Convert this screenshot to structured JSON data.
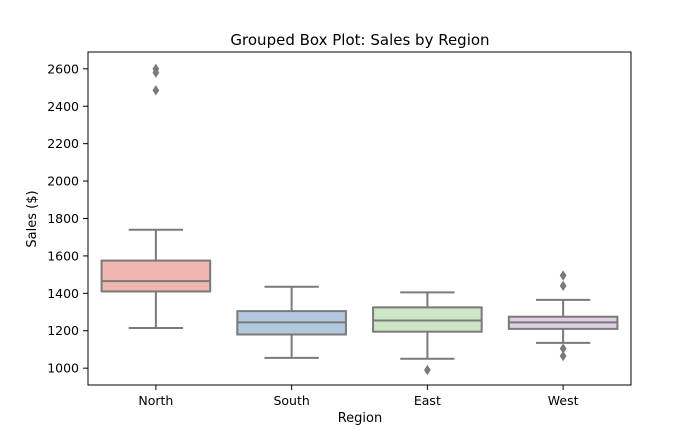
{
  "chart_data": {
    "type": "box",
    "title": "Grouped Box Plot: Sales by Region",
    "xlabel": "Region",
    "ylabel": "Sales ($)",
    "categories": [
      "North",
      "South",
      "East",
      "West"
    ],
    "ylim": [
      910,
      2690
    ],
    "yticks": [
      1000,
      1200,
      1400,
      1600,
      1800,
      2000,
      2200,
      2400,
      2600
    ],
    "ytick_labels": [
      "1000",
      "1200",
      "1400",
      "1600",
      "1800",
      "2000",
      "2200",
      "2400",
      "2600"
    ],
    "grid": false,
    "legend": "none",
    "boxes": [
      {
        "name": "North",
        "whisker_low": 1215,
        "q1": 1410,
        "median": 1465,
        "q3": 1575,
        "whisker_high": 1740,
        "outliers": [
          2600,
          2580,
          2485
        ],
        "color": "#f1b6b2"
      },
      {
        "name": "South",
        "whisker_low": 1055,
        "q1": 1180,
        "median": 1245,
        "q3": 1305,
        "whisker_high": 1435,
        "outliers": [],
        "color": "#b3c9df"
      },
      {
        "name": "East",
        "whisker_low": 1050,
        "q1": 1195,
        "median": 1255,
        "q3": 1325,
        "whisker_high": 1405,
        "outliers": [
          990
        ],
        "color": "#cde6c6"
      },
      {
        "name": "West",
        "whisker_low": 1135,
        "q1": 1210,
        "median": 1245,
        "q3": 1275,
        "whisker_high": 1365,
        "outliers": [
          1495,
          1440,
          1105,
          1065
        ],
        "color": "#dfcfe3"
      }
    ],
    "line_color": "#7a7a7a"
  }
}
